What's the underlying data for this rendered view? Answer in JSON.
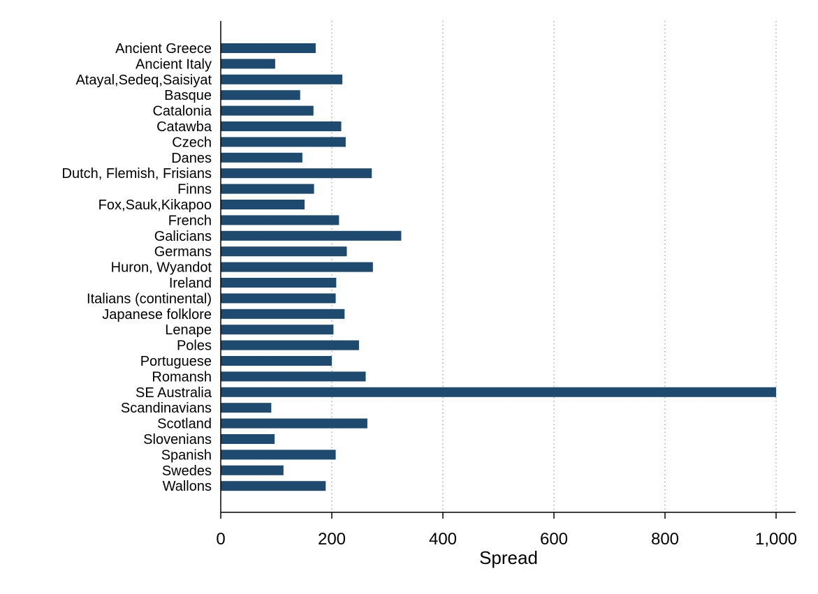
{
  "chart_data": {
    "type": "bar",
    "orientation": "horizontal",
    "title": "",
    "xlabel": "Spread",
    "ylabel": "",
    "xlim": [
      0,
      1000
    ],
    "xticks": [
      0,
      200,
      400,
      600,
      800,
      1000
    ],
    "xtick_labels": [
      "0",
      "200",
      "400",
      "600",
      "800",
      "1,000"
    ],
    "grid": "vertical dotted",
    "legend": "none",
    "bar_color": "#1f4a70",
    "categories": [
      "Ancient Greece",
      "Ancient Italy",
      "Atayal,Sedeq,Saisiyat",
      "Basque",
      "Catalonia",
      "Catawba",
      "Czech",
      "Danes",
      "Dutch, Flemish, Frisians",
      "Finns",
      "Fox,Sauk,Kikapoo",
      "French",
      "Galicians",
      "Germans",
      "Huron, Wyandot",
      "Ireland",
      "Italians (continental)",
      "Japanese folklore",
      "Lenape",
      "Poles",
      "Portuguese",
      "Romansh",
      "SE Australia",
      "Scandinavians",
      "Scotland",
      "Slovenians",
      "Spanish",
      "Swedes",
      "Wallons"
    ],
    "values": [
      171,
      98,
      219,
      143,
      167,
      217,
      225,
      147,
      272,
      168,
      151,
      213,
      325,
      227,
      274,
      208,
      207,
      223,
      203,
      249,
      200,
      261,
      1000,
      91,
      264,
      97,
      207,
      113,
      189
    ]
  }
}
